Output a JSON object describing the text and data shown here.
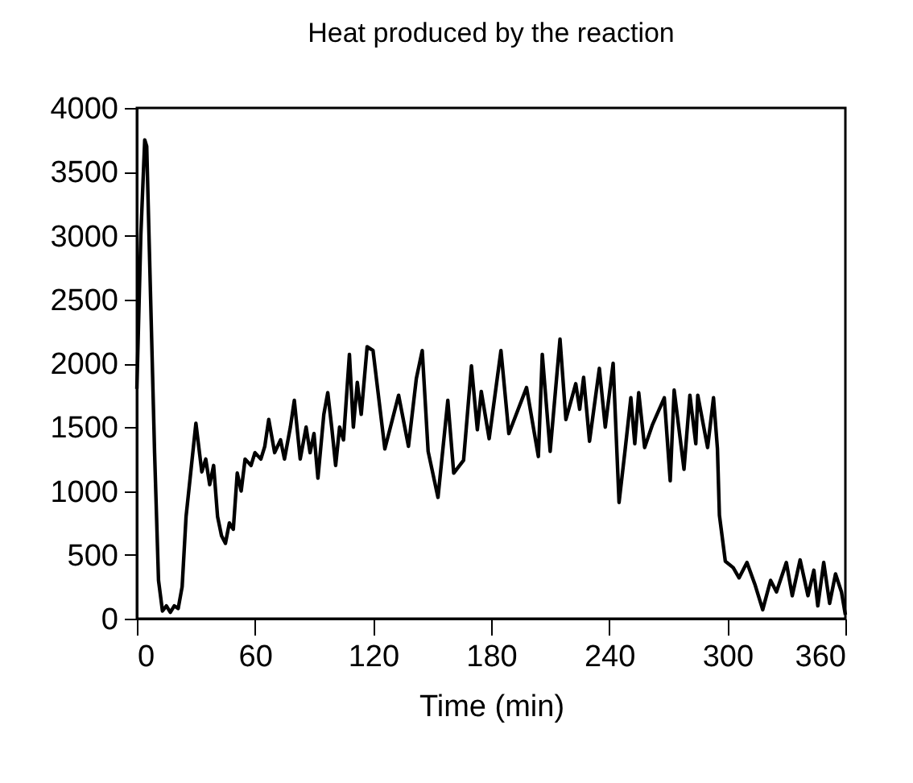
{
  "chart_data": {
    "type": "line",
    "title": "Heat produced by the reaction",
    "xlabel": "Time (min)",
    "xlim": [
      0,
      360
    ],
    "xticks": [
      0,
      60,
      120,
      180,
      240,
      300,
      360
    ],
    "ylim": [
      0,
      4000
    ],
    "yticks": [
      0,
      500,
      1000,
      1500,
      2000,
      2500,
      3000,
      3500,
      4000
    ],
    "grid": false,
    "marker": "none",
    "line_style": "solid",
    "series": [
      {
        "color": "#000000",
        "x": [
          0,
          2,
          4,
          5,
          7,
          9,
          11,
          13,
          15,
          17,
          19,
          21,
          23,
          25,
          30,
          33,
          35,
          37,
          39,
          41,
          43,
          45,
          47,
          49,
          51,
          53,
          55,
          58,
          60,
          63,
          65,
          67,
          70,
          73,
          75,
          78,
          80,
          83,
          86,
          88,
          90,
          92,
          95,
          97,
          99,
          101,
          103,
          105,
          108,
          110,
          112,
          114,
          117,
          120,
          126,
          133,
          138,
          142,
          145,
          148,
          153,
          158,
          161,
          166,
          170,
          173,
          175,
          179,
          185,
          189,
          198,
          204,
          206,
          210,
          215,
          218,
          223,
          225,
          227,
          230,
          235,
          238,
          242,
          245,
          248,
          251,
          253,
          255,
          258,
          262,
          268,
          271,
          273,
          278,
          281,
          284,
          285,
          290,
          293,
          295,
          296,
          299,
          303,
          306,
          310,
          314,
          318,
          322,
          325,
          330,
          333,
          337,
          341,
          344,
          346,
          349,
          352,
          355,
          358,
          360
        ],
        "values": [
          1800,
          3000,
          3750,
          3700,
          2500,
          1300,
          300,
          60,
          100,
          50,
          100,
          80,
          250,
          800,
          1530,
          1150,
          1250,
          1050,
          1200,
          800,
          650,
          590,
          750,
          700,
          1140,
          1000,
          1250,
          1200,
          1300,
          1250,
          1350,
          1560,
          1300,
          1400,
          1250,
          1500,
          1710,
          1250,
          1500,
          1300,
          1450,
          1100,
          1600,
          1770,
          1500,
          1200,
          1500,
          1400,
          2070,
          1500,
          1850,
          1600,
          2130,
          2100,
          1330,
          1750,
          1350,
          1880,
          2100,
          1310,
          950,
          1710,
          1140,
          1240,
          1980,
          1480,
          1780,
          1410,
          2100,
          1450,
          1810,
          1270,
          2070,
          1310,
          2190,
          1560,
          1840,
          1640,
          1890,
          1390,
          1960,
          1500,
          2000,
          910,
          1310,
          1730,
          1370,
          1770,
          1340,
          1520,
          1730,
          1080,
          1790,
          1170,
          1750,
          1370,
          1750,
          1340,
          1730,
          1330,
          810,
          450,
          400,
          320,
          440,
          270,
          70,
          300,
          210,
          440,
          180,
          460,
          180,
          380,
          100,
          440,
          120,
          350,
          210,
          30
        ]
      }
    ]
  }
}
